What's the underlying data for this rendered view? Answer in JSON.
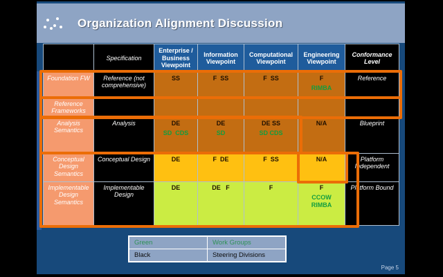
{
  "slide": {
    "title": "Organization Alignment Discussion",
    "page_label": "Page 5"
  },
  "colors": {
    "slide_bg": "#17497B",
    "titlebar_bg": "#8EA4C4",
    "header_blue": "#1F5C9C",
    "cell_orange": "#C36D12",
    "cell_yellow": "#FFC011",
    "cell_green": "#CBEC43",
    "row_header_salmon": "#F59A6E",
    "highlight_orange": "#EB6D07",
    "green_text": "#129D3F",
    "legend_green": "#2F9156"
  },
  "table": {
    "header": [
      {
        "label": "",
        "style": "black"
      },
      {
        "label": "Specification",
        "style": "black"
      },
      {
        "label": "Enterprise / Business Viewpoint",
        "style": "blue"
      },
      {
        "label": "Information Viewpoint",
        "style": "blue"
      },
      {
        "label": "Computational Viewpoint",
        "style": "blue"
      },
      {
        "label": "Engineering Viewpoint",
        "style": "blue"
      },
      {
        "label": "Conformance Level",
        "style": "black bold"
      }
    ],
    "rows": [
      {
        "name": "foundation-fw",
        "cells": [
          {
            "text": "Foundation FW",
            "bg": "salmon"
          },
          {
            "text": "Reference (not comprehensive)",
            "bg": "black"
          },
          {
            "text": "SS",
            "bg": "orange"
          },
          {
            "text": "F  SS",
            "bg": "orange"
          },
          {
            "text": "F  SS",
            "bg": "orange"
          },
          {
            "text": "F",
            "sub": "RIMBA",
            "bg": "orange"
          },
          {
            "text": "Reference",
            "bg": "black"
          }
        ]
      },
      {
        "name": "reference-frameworks",
        "cells": [
          {
            "text": "Reference Frameworks",
            "bg": "salmon"
          },
          {
            "text": "",
            "bg": "black"
          },
          {
            "text": "",
            "bg": "orange"
          },
          {
            "text": "",
            "bg": "orange"
          },
          {
            "text": "",
            "bg": "orange"
          },
          {
            "text": "",
            "bg": "orange"
          },
          {
            "text": "",
            "bg": "black"
          }
        ]
      },
      {
        "name": "analysis-semantics",
        "cells": [
          {
            "text": "Analysis Semantics",
            "bg": "salmon"
          },
          {
            "text": "Analysis",
            "bg": "black"
          },
          {
            "text": "DE",
            "sub": "SD  CDS",
            "bg": "orange"
          },
          {
            "text": "DE",
            "sub": "SD",
            "bg": "orange"
          },
          {
            "text": "DE SS",
            "sub": "SD CDS",
            "bg": "orange"
          },
          {
            "text": "N/A",
            "bg": "orange"
          },
          {
            "text": "Blueprint",
            "bg": "black"
          }
        ]
      },
      {
        "name": "conceptual-design-semantics",
        "cells": [
          {
            "text": "Conceptual Design Semantics",
            "bg": "salmon"
          },
          {
            "text": "Conceptual Design",
            "bg": "black"
          },
          {
            "text": "DE",
            "bg": "yellow"
          },
          {
            "text": "F  DE",
            "bg": "yellow"
          },
          {
            "text": "F  SS",
            "bg": "yellow"
          },
          {
            "text": "N/A",
            "bg": "yellow"
          },
          {
            "text": "Platform Independent",
            "bg": "black"
          }
        ]
      },
      {
        "name": "implementable-design-semantics",
        "cells": [
          {
            "text": "Implementable Design Semantics",
            "bg": "salmon"
          },
          {
            "text": "Implementable Design",
            "bg": "black"
          },
          {
            "text": "DE",
            "bg": "green"
          },
          {
            "text": "DE   F",
            "bg": "green"
          },
          {
            "text": "F",
            "bg": "green"
          },
          {
            "text": "F",
            "sub": "CCOW\nRIMBA",
            "bg": "green"
          },
          {
            "text": "Platform Bound",
            "bg": "black"
          }
        ]
      }
    ]
  },
  "legend": {
    "rows": [
      {
        "key": "Green",
        "value": "Work Groups",
        "color": "green"
      },
      {
        "key": "Black",
        "value": "Steering Divisions",
        "color": "black"
      }
    ]
  }
}
